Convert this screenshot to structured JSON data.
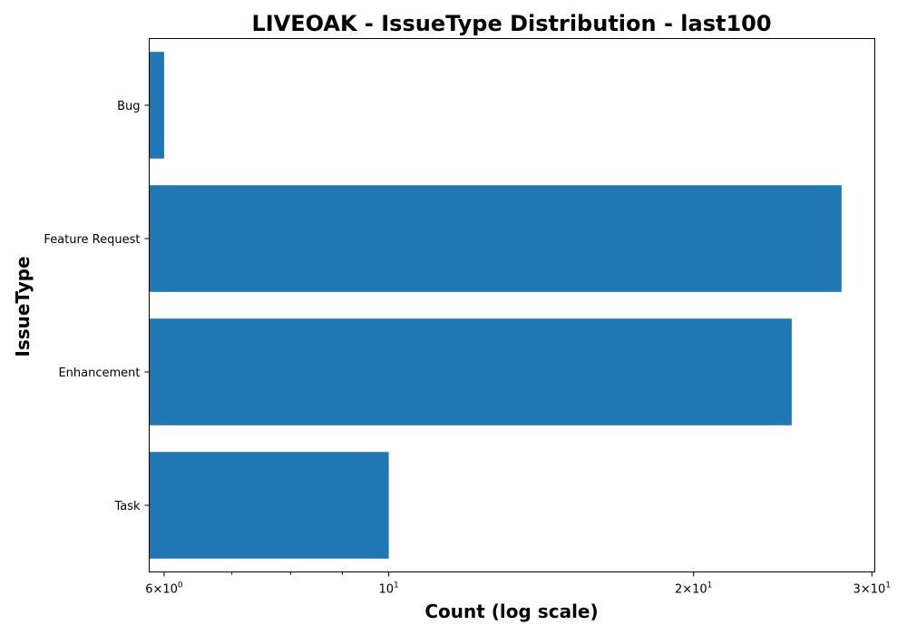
{
  "chart_data": {
    "type": "bar",
    "orientation": "horizontal",
    "title": "LIVEOAK - IssueType Distribution - last100",
    "xlabel": "Count (log scale)",
    "ylabel": "IssueType",
    "x_scale": "log",
    "xlim": [
      5.8,
      30.2
    ],
    "categories": [
      "Bug",
      "Feature Request",
      "Enhancement",
      "Task"
    ],
    "values": [
      6,
      28,
      25,
      10
    ],
    "bar_color": "#1f77b4",
    "x_ticks": [
      {
        "value": 6,
        "base": "6×10",
        "exp": "0"
      },
      {
        "value": 10,
        "base": "10",
        "exp": "1"
      },
      {
        "value": 20,
        "base": "2×10",
        "exp": "1"
      },
      {
        "value": 30,
        "base": "3×10",
        "exp": "1"
      }
    ],
    "x_minor_ticks": [
      7,
      8,
      9
    ],
    "grid": false,
    "legend": "none"
  }
}
